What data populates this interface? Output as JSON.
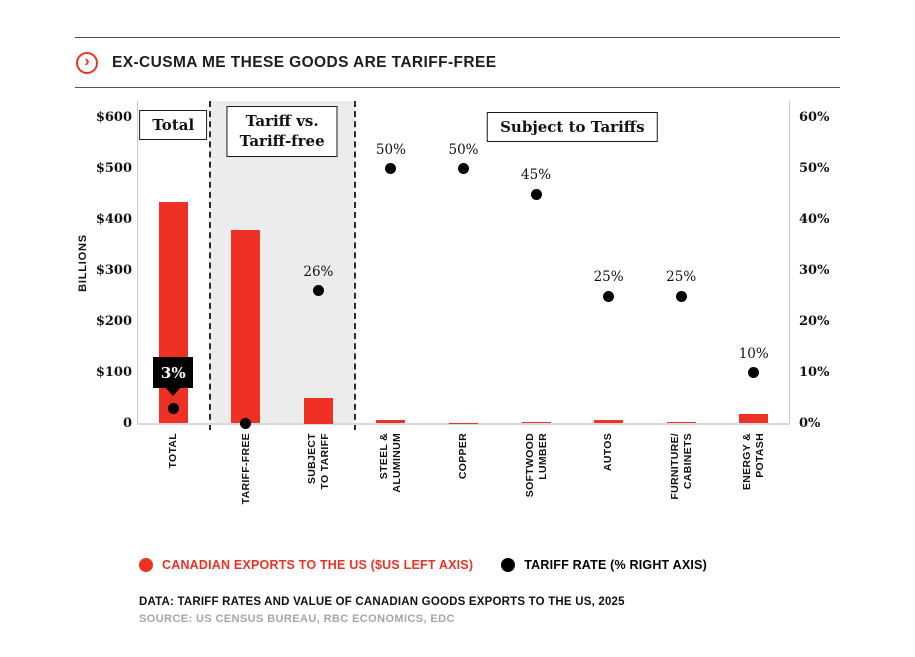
{
  "title": {
    "text": "EX-CUSMA ME THESE GOODS ARE TARIFF-FREE",
    "icon": "chevron-right-circle-icon"
  },
  "colors": {
    "accent_red": "#ee3124",
    "dot_black": "#000000",
    "band_gray": "#ececec",
    "source_gray": "#a6a6a6"
  },
  "chart_data": {
    "type": "bar",
    "subtype": "dual-axis bar + scatter combo",
    "categories": [
      "TOTAL",
      "TARIFF-FREE",
      "SUBJECT\nTO TARIFF",
      "STEEL &\nALUMINUM",
      "COPPER",
      "SOFTWOOD\nLUMBER",
      "AUTOS",
      "FURNITURE/\nCABINETS",
      "ENERGY &\nPOTASH"
    ],
    "series": [
      {
        "name": "CANADIAN EXPORTS TO THE US ($US LEFT AXIS)",
        "type": "bar",
        "axis": "left",
        "color": "#ee3124",
        "values": [
          435,
          380,
          50,
          7,
          1.5,
          2.5,
          6,
          2.5,
          19
        ]
      },
      {
        "name": "TARIFF RATE (% RIGHT AXIS)",
        "type": "scatter",
        "axis": "right",
        "color": "#000000",
        "values": [
          3,
          0,
          26,
          50,
          50,
          45,
          25,
          25,
          10
        ],
        "point_labels": [
          null,
          null,
          "26%",
          "50%",
          "50%",
          "45%",
          "25%",
          "25%",
          "10%"
        ]
      }
    ],
    "callout": {
      "col": 0,
      "text": "3%"
    },
    "left_axis": {
      "label": "BILLIONS",
      "min": 0,
      "max": 600,
      "ticks": [
        "$600",
        "$500",
        "$400",
        "$300",
        "$200",
        "$100",
        "0"
      ]
    },
    "right_axis": {
      "min": 0,
      "max": 60,
      "ticks": [
        "60%",
        "50%",
        "40%",
        "30%",
        "20%",
        "10%",
        "0%"
      ]
    },
    "sections": [
      {
        "label": "Total",
        "cols": [
          0,
          0
        ],
        "shaded": false
      },
      {
        "label": "Tariff vs.\nTariff-free",
        "cols": [
          1,
          2
        ],
        "shaded": true
      },
      {
        "label": "Subject to Tariffs",
        "cols": [
          3,
          8
        ],
        "shaded": false
      }
    ],
    "grid": false,
    "legend_position": "bottom"
  },
  "legend": [
    {
      "label": "CANADIAN EXPORTS TO THE US ($US LEFT AXIS)",
      "color": "#ee3124"
    },
    {
      "label": "TARIFF RATE (% RIGHT AXIS)",
      "color": "#000000"
    }
  ],
  "footer": {
    "data_line": "DATA: TARIFF RATES AND VALUE OF CANADIAN GOODS EXPORTS TO THE US, 2025",
    "source_line": "SOURCE: US CENSUS BUREAU, RBC ECONOMICS, EDC"
  }
}
